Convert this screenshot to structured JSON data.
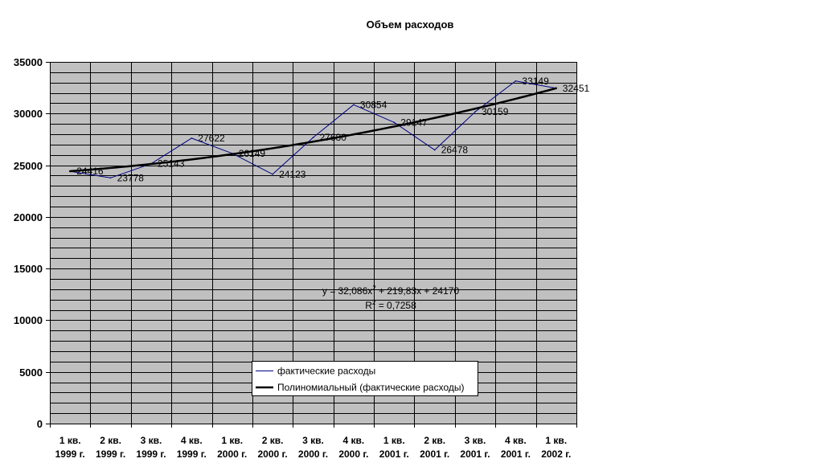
{
  "chart_data": {
    "type": "line",
    "title": "Объем расходов",
    "categories": [
      [
        "1 кв.",
        "1999 г."
      ],
      [
        "2 кв.",
        "1999 г."
      ],
      [
        "3 кв.",
        "1999 г."
      ],
      [
        "4 кв.",
        "1999 г."
      ],
      [
        "1 кв.",
        "2000 г."
      ],
      [
        "2 кв.",
        "2000 г."
      ],
      [
        "3 кв.",
        "2000 г."
      ],
      [
        "4 кв.",
        "2000 г."
      ],
      [
        "1 кв.",
        "2001 г."
      ],
      [
        "2 кв.",
        "2001 г."
      ],
      [
        "3 кв.",
        "2001 г."
      ],
      [
        "4 кв.",
        "2001 г."
      ],
      [
        "1 кв.",
        "2002 г."
      ]
    ],
    "series": [
      {
        "name": "фактические расходы",
        "values": [
          24416,
          23778,
          25143,
          27622,
          26149,
          24123,
          27680,
          30854,
          29147,
          26478,
          30159,
          33149,
          32451
        ],
        "color": "#000080",
        "data_labels": true
      }
    ],
    "trendline": {
      "name": "Полиномиальный (фактические расходы)",
      "type": "polynomial",
      "order": 2,
      "coefficients": {
        "x2": 32.086,
        "x1": 219.83,
        "x0": 24170
      },
      "color": "#000000",
      "equation": [
        "y = 32,086x",
        "2",
        " + 219,83x + 24170"
      ],
      "r_squared": [
        "R",
        "2",
        " = 0,7258"
      ]
    },
    "ylim": [
      0,
      35000
    ],
    "yticks": [
      0,
      5000,
      10000,
      15000,
      20000,
      25000,
      30000,
      35000
    ],
    "grid": true,
    "minor_gridline_step": 1000,
    "gridline_color": "#000000",
    "plot_background": "#c0c0c0",
    "legend": {
      "placement": "bottom-center"
    }
  }
}
